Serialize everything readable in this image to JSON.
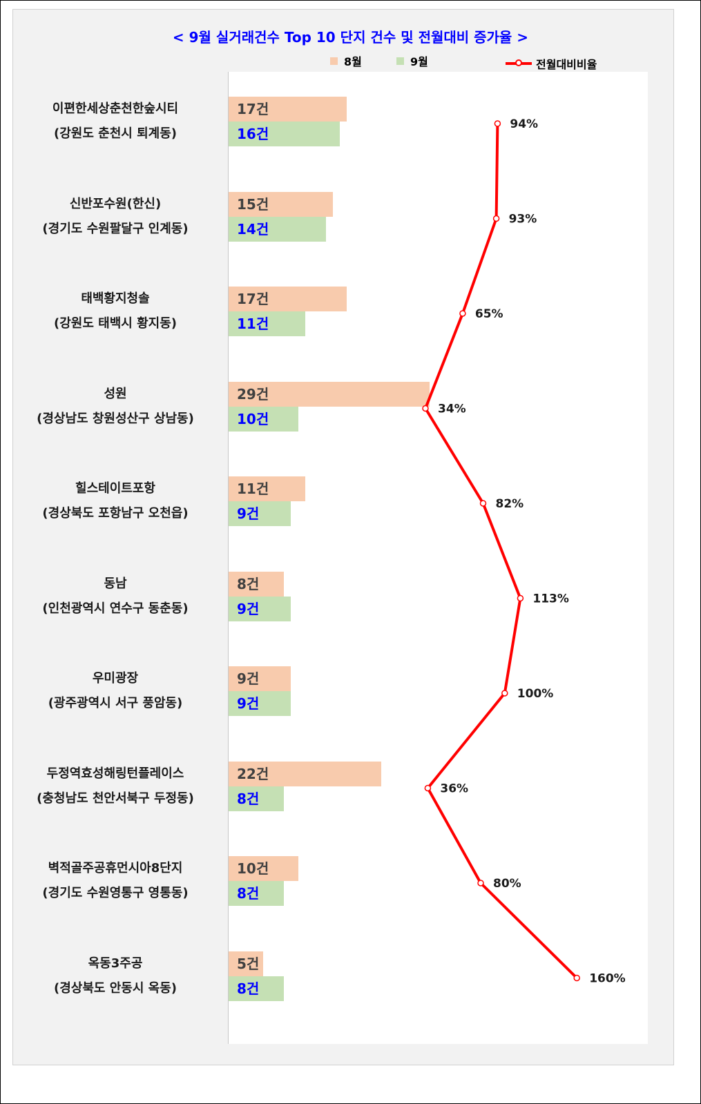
{
  "chart_data": {
    "type": "bar",
    "title": "< 9월 실거래건수 Top 10 단지 건수 및 전월대비 증가율 >",
    "legend": [
      "8월",
      "9월",
      "전월대비비율"
    ],
    "legend_placement": "top",
    "colors": {
      "aug": "#f8cbad",
      "sep": "#c5e0b4",
      "ratio": "#ff0000",
      "title": "#0000ff",
      "sep_label": "#0000ff"
    },
    "categories": [
      {
        "name": "이편한세상춘천한숲시티",
        "region": "(강원도 춘천시 퇴계동)"
      },
      {
        "name": "신반포수원(한신)",
        "region": "(경기도 수원팔달구 인계동)"
      },
      {
        "name": "태백황지청솔",
        "region": "(강원도 태백시 황지동)"
      },
      {
        "name": "성원",
        "region": "(경상남도 창원성산구 상남동)"
      },
      {
        "name": "힐스테이트포항",
        "region": "(경상북도 포항남구 오천읍)"
      },
      {
        "name": "동남",
        "region": "(인천광역시 연수구 동춘동)"
      },
      {
        "name": "우미광장",
        "region": "(광주광역시 서구 풍암동)"
      },
      {
        "name": "두정역효성해링턴플레이스",
        "region": "(충청남도 천안서북구 두정동)"
      },
      {
        "name": "벽적골주공휴먼시아8단지",
        "region": "(경기도 수원영통구 영통동)"
      },
      {
        "name": "옥동3주공",
        "region": "(경상북도 안동시 옥동)"
      }
    ],
    "series": [
      {
        "name": "8월",
        "values": [
          17,
          15,
          17,
          29,
          11,
          8,
          9,
          22,
          10,
          5
        ],
        "labels": [
          "17건",
          "15건",
          "17건",
          "29건",
          "11건",
          "8건",
          "9건",
          "22건",
          "10건",
          "5건"
        ]
      },
      {
        "name": "9월",
        "values": [
          16,
          14,
          11,
          10,
          9,
          9,
          9,
          8,
          8,
          8
        ],
        "labels": [
          "16건",
          "14건",
          "11건",
          "10건",
          "9건",
          "9건",
          "9건",
          "8건",
          "8건",
          "8건"
        ]
      },
      {
        "name": "전월대비비율",
        "values": [
          94,
          93,
          65,
          34,
          82,
          113,
          100,
          36,
          80,
          160
        ],
        "labels": [
          "94%",
          "93%",
          "65%",
          "34%",
          "82%",
          "113%",
          "100%",
          "36%",
          "80%",
          "160%"
        ]
      }
    ]
  }
}
